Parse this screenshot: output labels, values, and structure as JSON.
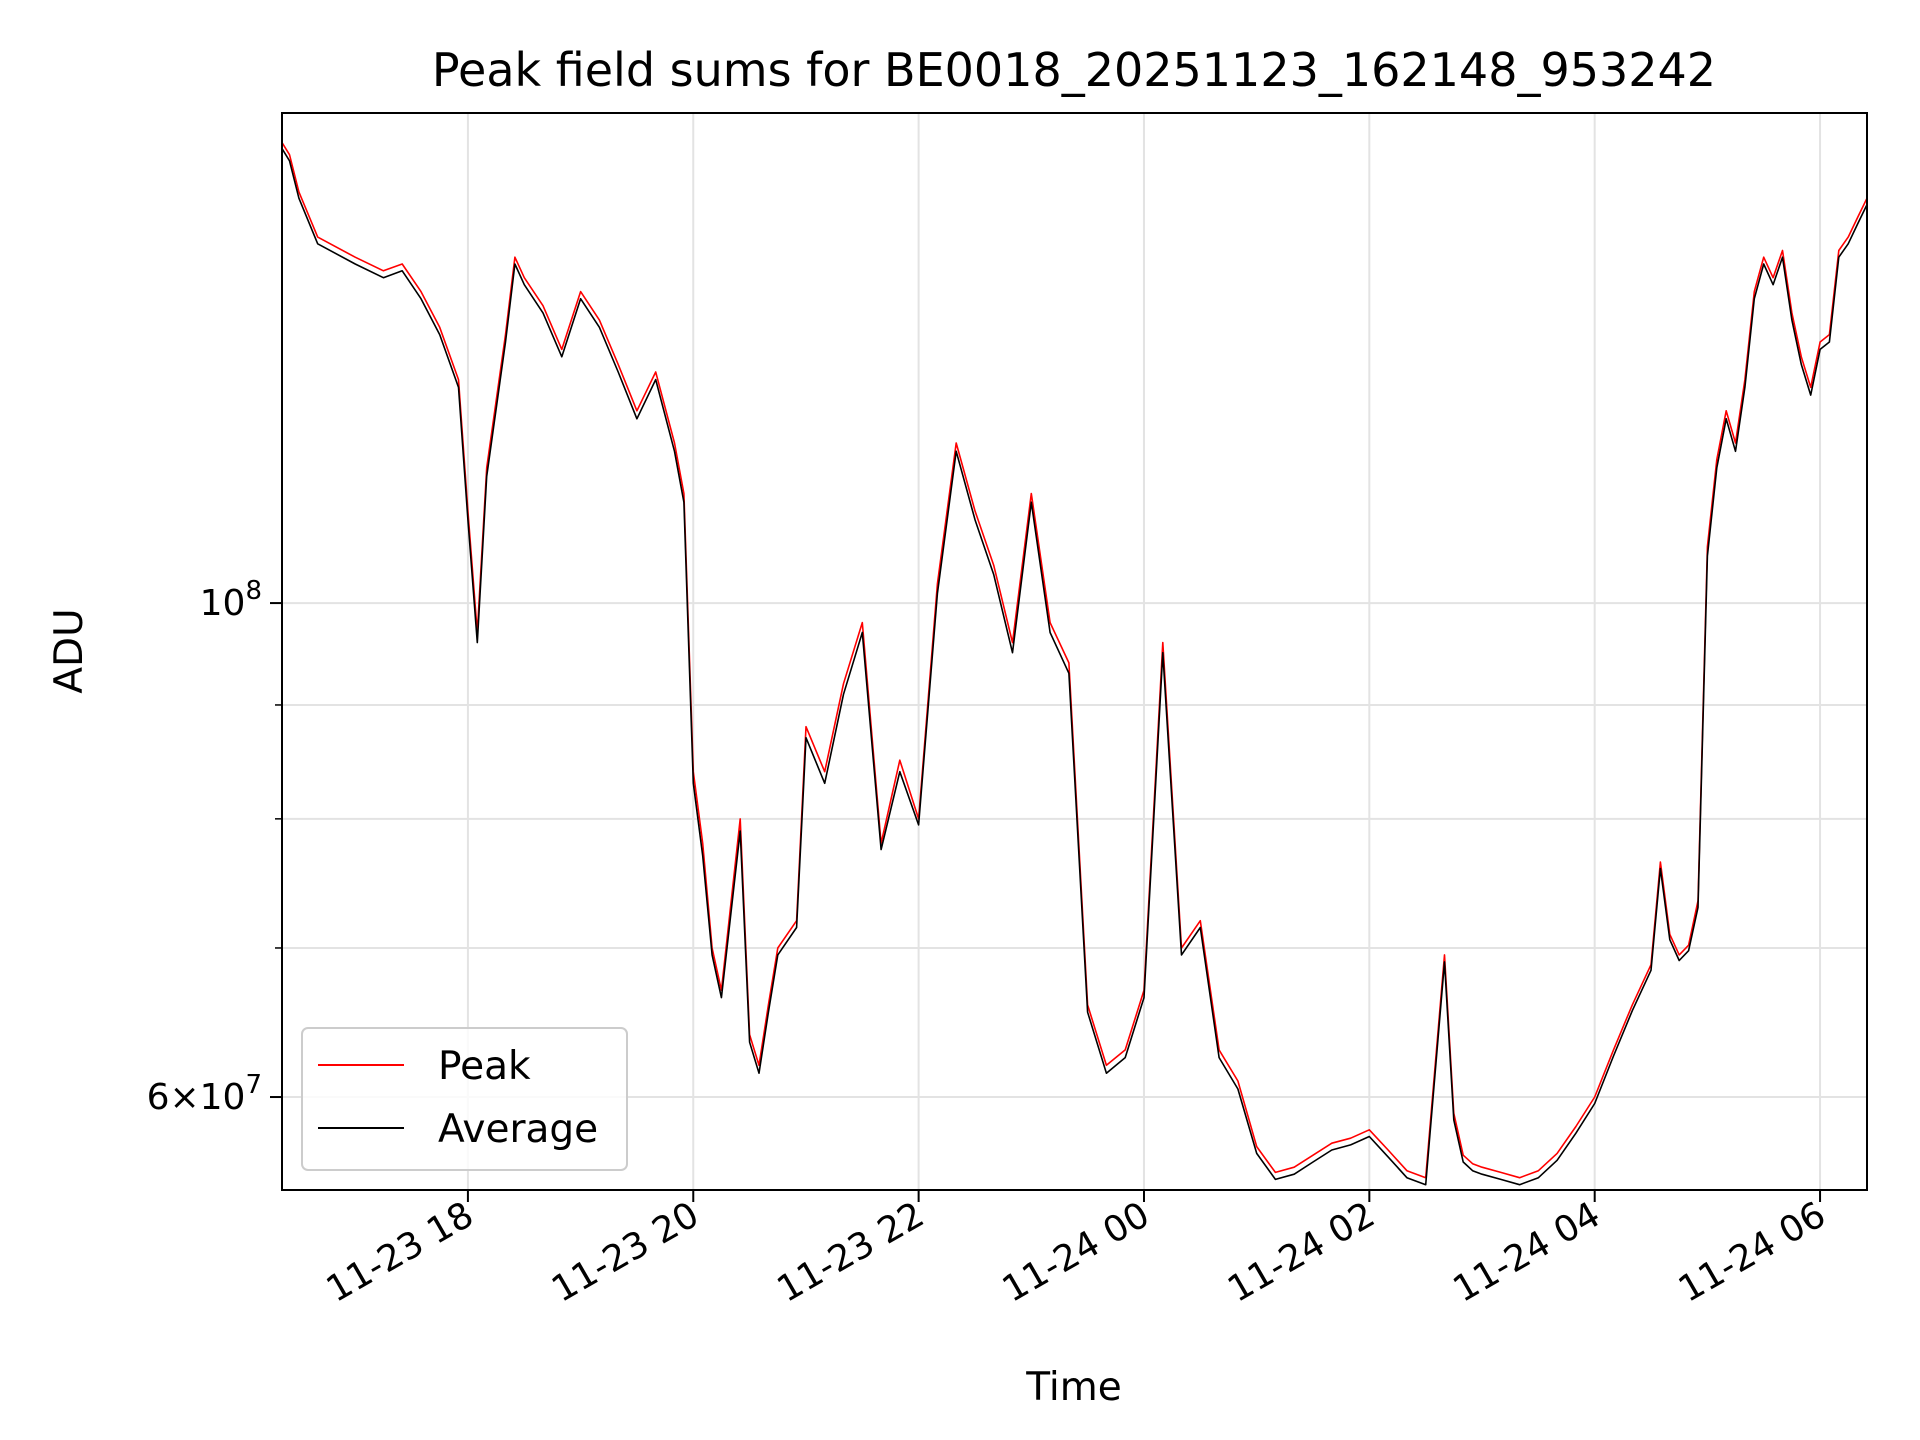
{
  "chart_data": {
    "type": "line",
    "title": "Peak field sums for BE0018_20251123_162148_953242",
    "xlabel": "Time",
    "ylabel": "ADU",
    "yscale": "log",
    "xlim": [
      "2025-11-23 16:21",
      "2025-11-24 06:25"
    ],
    "ylim": [
      54500000,
      166000000
    ],
    "grid": true,
    "legend_position": "lower-left",
    "x_ticks": [
      {
        "value": "2025-11-23 18:00",
        "label": "11-23 18"
      },
      {
        "value": "2025-11-23 20:00",
        "label": "11-23 20"
      },
      {
        "value": "2025-11-23 22:00",
        "label": "11-23 22"
      },
      {
        "value": "2025-11-24 00:00",
        "label": "11-24 00"
      },
      {
        "value": "2025-11-24 02:00",
        "label": "11-24 02"
      },
      {
        "value": "2025-11-24 04:00",
        "label": "11-24 04"
      },
      {
        "value": "2025-11-24 06:00",
        "label": "11-24 06"
      }
    ],
    "y_ticks": [
      {
        "value": 100000000,
        "base": "10",
        "exp": "8",
        "coef": ""
      },
      {
        "value": 60000000,
        "base": "10",
        "exp": "7",
        "coef": "6"
      }
    ],
    "y_minor_ticks": [
      70000000,
      80000000,
      90000000
    ],
    "series": [
      {
        "name": "Peak",
        "color": "#ff0000",
        "x": [
          "2025-11-23 16:21",
          "2025-11-23 16:25",
          "2025-11-23 16:30",
          "2025-11-23 16:40",
          "2025-11-23 17:00",
          "2025-11-23 17:15",
          "2025-11-23 17:25",
          "2025-11-23 17:35",
          "2025-11-23 17:45",
          "2025-11-23 17:55",
          "2025-11-23 18:00",
          "2025-11-23 18:05",
          "2025-11-23 18:10",
          "2025-11-23 18:20",
          "2025-11-23 18:25",
          "2025-11-23 18:30",
          "2025-11-23 18:40",
          "2025-11-23 18:50",
          "2025-11-23 19:00",
          "2025-11-23 19:10",
          "2025-11-23 19:20",
          "2025-11-23 19:30",
          "2025-11-23 19:40",
          "2025-11-23 19:50",
          "2025-11-23 19:55",
          "2025-11-23 20:00",
          "2025-11-23 20:05",
          "2025-11-23 20:10",
          "2025-11-23 20:15",
          "2025-11-23 20:25",
          "2025-11-23 20:30",
          "2025-11-23 20:35",
          "2025-11-23 20:40",
          "2025-11-23 20:45",
          "2025-11-23 20:55",
          "2025-11-23 21:00",
          "2025-11-23 21:10",
          "2025-11-23 21:20",
          "2025-11-23 21:30",
          "2025-11-23 21:40",
          "2025-11-23 21:50",
          "2025-11-23 22:00",
          "2025-11-23 22:10",
          "2025-11-23 22:20",
          "2025-11-23 22:30",
          "2025-11-23 22:40",
          "2025-11-23 22:50",
          "2025-11-23 23:00",
          "2025-11-23 23:10",
          "2025-11-23 23:20",
          "2025-11-23 23:30",
          "2025-11-23 23:40",
          "2025-11-23 23:50",
          "2025-11-24 00:00",
          "2025-11-24 00:10",
          "2025-11-24 00:20",
          "2025-11-24 00:30",
          "2025-11-24 00:40",
          "2025-11-24 00:50",
          "2025-11-24 01:00",
          "2025-11-24 01:10",
          "2025-11-24 01:20",
          "2025-11-24 01:30",
          "2025-11-24 01:40",
          "2025-11-24 01:50",
          "2025-11-24 02:00",
          "2025-11-24 02:10",
          "2025-11-24 02:20",
          "2025-11-24 02:30",
          "2025-11-24 02:40",
          "2025-11-24 02:45",
          "2025-11-24 02:50",
          "2025-11-24 02:55",
          "2025-11-24 03:00",
          "2025-11-24 03:10",
          "2025-11-24 03:20",
          "2025-11-24 03:30",
          "2025-11-24 03:40",
          "2025-11-24 03:50",
          "2025-11-24 04:00",
          "2025-11-24 04:10",
          "2025-11-24 04:20",
          "2025-11-24 04:30",
          "2025-11-24 04:35",
          "2025-11-24 04:40",
          "2025-11-24 04:45",
          "2025-11-24 04:50",
          "2025-11-24 04:55",
          "2025-11-24 05:00",
          "2025-11-24 05:05",
          "2025-11-24 05:10",
          "2025-11-24 05:15",
          "2025-11-24 05:20",
          "2025-11-24 05:25",
          "2025-11-24 05:30",
          "2025-11-24 05:35",
          "2025-11-24 05:40",
          "2025-11-24 05:45",
          "2025-11-24 05:50",
          "2025-11-24 05:55",
          "2025-11-24 06:00",
          "2025-11-24 06:05",
          "2025-11-24 06:10",
          "2025-11-24 06:15",
          "2025-11-24 06:20",
          "2025-11-24 06:25"
        ],
        "y": [
          161000000,
          159000000,
          153000000,
          146000000,
          143000000,
          141000000,
          142000000,
          138000000,
          133000000,
          126000000,
          110000000,
          97000000,
          115000000,
          132000000,
          143000000,
          140000000,
          136000000,
          130000000,
          138000000,
          134000000,
          128000000,
          122000000,
          127000000,
          118000000,
          112000000,
          84000000,
          78000000,
          70000000,
          67000000,
          80000000,
          64000000,
          62000000,
          66000000,
          70000000,
          72000000,
          88000000,
          84000000,
          92000000,
          98000000,
          78000000,
          85000000,
          80000000,
          102000000,
          118000000,
          110000000,
          104000000,
          96000000,
          112000000,
          98000000,
          94000000,
          66000000,
          62000000,
          63000000,
          67000000,
          96000000,
          70000000,
          72000000,
          63000000,
          61000000,
          57000000,
          55500000,
          55800000,
          56500000,
          57200000,
          57500000,
          58000000,
          56800000,
          55600000,
          55200000,
          69500000,
          59000000,
          56500000,
          56000000,
          55800000,
          55500000,
          55200000,
          55600000,
          56600000,
          58200000,
          60000000,
          63000000,
          66000000,
          68800000,
          76500000,
          71000000,
          69500000,
          70200000,
          73500000,
          106000000,
          116000000,
          122000000,
          118000000,
          126000000,
          138000000,
          143000000,
          140000000,
          144000000,
          135000000,
          129000000,
          125000000,
          131000000,
          132000000,
          144000000,
          146000000,
          149000000,
          152000000
        ]
      },
      {
        "name": "Average",
        "color": "#000000",
        "x": [
          "2025-11-23 16:21",
          "2025-11-23 16:25",
          "2025-11-23 16:30",
          "2025-11-23 16:40",
          "2025-11-23 17:00",
          "2025-11-23 17:15",
          "2025-11-23 17:25",
          "2025-11-23 17:35",
          "2025-11-23 17:45",
          "2025-11-23 17:55",
          "2025-11-23 18:00",
          "2025-11-23 18:05",
          "2025-11-23 18:10",
          "2025-11-23 18:20",
          "2025-11-23 18:25",
          "2025-11-23 18:30",
          "2025-11-23 18:40",
          "2025-11-23 18:50",
          "2025-11-23 19:00",
          "2025-11-23 19:10",
          "2025-11-23 19:20",
          "2025-11-23 19:30",
          "2025-11-23 19:40",
          "2025-11-23 19:50",
          "2025-11-23 19:55",
          "2025-11-23 20:00",
          "2025-11-23 20:05",
          "2025-11-23 20:10",
          "2025-11-23 20:15",
          "2025-11-23 20:25",
          "2025-11-23 20:30",
          "2025-11-23 20:35",
          "2025-11-23 20:40",
          "2025-11-23 20:45",
          "2025-11-23 20:55",
          "2025-11-23 21:00",
          "2025-11-23 21:10",
          "2025-11-23 21:20",
          "2025-11-23 21:30",
          "2025-11-23 21:40",
          "2025-11-23 21:50",
          "2025-11-23 22:00",
          "2025-11-23 22:10",
          "2025-11-23 22:20",
          "2025-11-23 22:30",
          "2025-11-23 22:40",
          "2025-11-23 22:50",
          "2025-11-23 23:00",
          "2025-11-23 23:10",
          "2025-11-23 23:20",
          "2025-11-23 23:30",
          "2025-11-23 23:40",
          "2025-11-23 23:50",
          "2025-11-24 00:00",
          "2025-11-24 00:10",
          "2025-11-24 00:20",
          "2025-11-24 00:30",
          "2025-11-24 00:40",
          "2025-11-24 00:50",
          "2025-11-24 01:00",
          "2025-11-24 01:10",
          "2025-11-24 01:20",
          "2025-11-24 01:30",
          "2025-11-24 01:40",
          "2025-11-24 01:50",
          "2025-11-24 02:00",
          "2025-11-24 02:10",
          "2025-11-24 02:20",
          "2025-11-24 02:30",
          "2025-11-24 02:40",
          "2025-11-24 02:45",
          "2025-11-24 02:50",
          "2025-11-24 02:55",
          "2025-11-24 03:00",
          "2025-11-24 03:10",
          "2025-11-24 03:20",
          "2025-11-24 03:30",
          "2025-11-24 03:40",
          "2025-11-24 03:50",
          "2025-11-24 04:00",
          "2025-11-24 04:10",
          "2025-11-24 04:20",
          "2025-11-24 04:30",
          "2025-11-24 04:35",
          "2025-11-24 04:40",
          "2025-11-24 04:45",
          "2025-11-24 04:50",
          "2025-11-24 04:55",
          "2025-11-24 05:00",
          "2025-11-24 05:05",
          "2025-11-24 05:10",
          "2025-11-24 05:15",
          "2025-11-24 05:20",
          "2025-11-24 05:25",
          "2025-11-24 05:30",
          "2025-11-24 05:35",
          "2025-11-24 05:40",
          "2025-11-24 05:45",
          "2025-11-24 05:50",
          "2025-11-24 05:55",
          "2025-11-24 06:00",
          "2025-11-24 06:05",
          "2025-11-24 06:10",
          "2025-11-24 06:15",
          "2025-11-24 06:20",
          "2025-11-24 06:25"
        ],
        "y": [
          160000000,
          158000000,
          152000000,
          145000000,
          142000000,
          140000000,
          141000000,
          137000000,
          132000000,
          125000000,
          109000000,
          96000000,
          114000000,
          131000000,
          142000000,
          139000000,
          135000000,
          129000000,
          137000000,
          133000000,
          127000000,
          121000000,
          126000000,
          117000000,
          111000000,
          83000000,
          77000000,
          69500000,
          66500000,
          79000000,
          63500000,
          61500000,
          65500000,
          69500000,
          71500000,
          87000000,
          83000000,
          91000000,
          97000000,
          77500000,
          84000000,
          79500000,
          101000000,
          117000000,
          109000000,
          103000000,
          95000000,
          111000000,
          97000000,
          93000000,
          65500000,
          61500000,
          62500000,
          66500000,
          95000000,
          69500000,
          71500000,
          62500000,
          60500000,
          56600000,
          55100000,
          55400000,
          56100000,
          56800000,
          57100000,
          57600000,
          56400000,
          55200000,
          54800000,
          69000000,
          58600000,
          56100000,
          55600000,
          55400000,
          55100000,
          54800000,
          55200000,
          56200000,
          57800000,
          59600000,
          62600000,
          65600000,
          68400000,
          76000000,
          70600000,
          69100000,
          69800000,
          73000000,
          105000000,
          115000000,
          121000000,
          117000000,
          125000000,
          137000000,
          142000000,
          139000000,
          143000000,
          134000000,
          128000000,
          124000000,
          130000000,
          131000000,
          143000000,
          145000000,
          148000000,
          151000000
        ]
      }
    ]
  }
}
